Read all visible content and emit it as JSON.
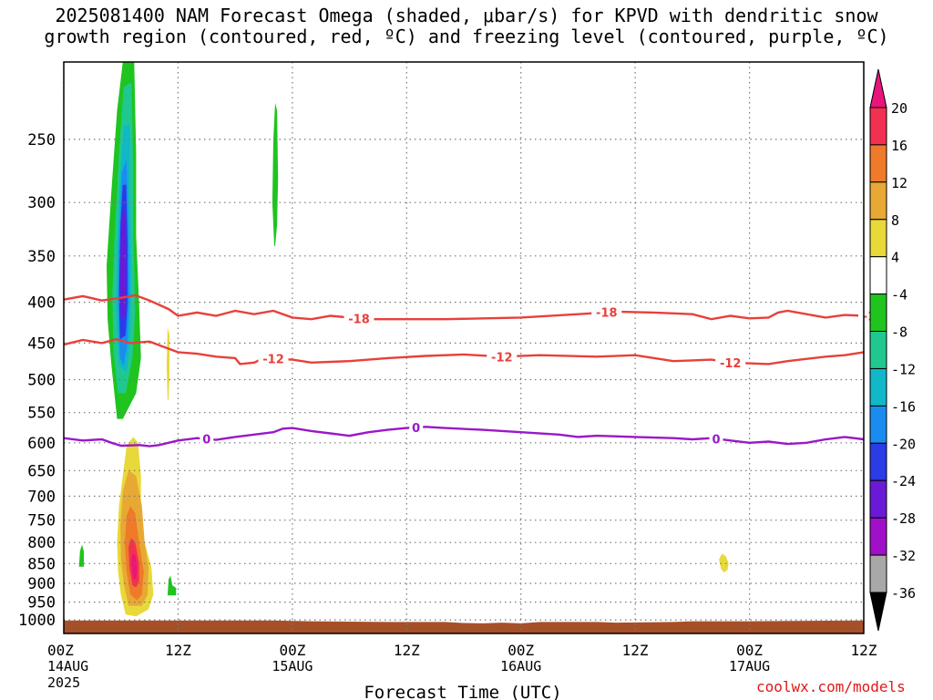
{
  "title_line1": "2025081400 NAM Forecast Omega (shaded, μbar/s) for KPVD with dendritic snow",
  "title_line2": "growth region (contoured, red, ºC) and freezing level (contoured, purple, ºC)",
  "credit": "coolwx.com/models",
  "chart_data": {
    "type": "contour",
    "xlabel": "Forecast Time (UTC)",
    "ylabel": "",
    "x_range_hours": [
      0,
      84
    ],
    "x_ticks": [
      {
        "hour": 0,
        "label": "00Z",
        "sub1": "14AUG",
        "sub2": "2025"
      },
      {
        "hour": 12,
        "label": "12Z",
        "sub1": "",
        "sub2": ""
      },
      {
        "hour": 24,
        "label": "00Z",
        "sub1": "15AUG",
        "sub2": ""
      },
      {
        "hour": 36,
        "label": "12Z",
        "sub1": "",
        "sub2": ""
      },
      {
        "hour": 48,
        "label": "00Z",
        "sub1": "16AUG",
        "sub2": ""
      },
      {
        "hour": 60,
        "label": "12Z",
        "sub1": "",
        "sub2": ""
      },
      {
        "hour": 72,
        "label": "00Z",
        "sub1": "17AUG",
        "sub2": ""
      },
      {
        "hour": 84,
        "label": "12Z",
        "sub1": "",
        "sub2": ""
      }
    ],
    "y_scale": "log",
    "y_range_hpa": [
      1040,
      200
    ],
    "y_ticks": [
      250,
      300,
      350,
      400,
      450,
      500,
      550,
      600,
      650,
      700,
      750,
      800,
      850,
      900,
      950,
      1000
    ],
    "grid": true,
    "colorbar": {
      "labels": [
        20,
        16,
        12,
        8,
        4,
        -4,
        -8,
        -12,
        -16,
        -20,
        -24,
        -28,
        -32,
        -36
      ],
      "colors": [
        "#f23050",
        "#ee7a2a",
        "#e8a834",
        "#e8d83a",
        "#ffffff",
        "#1fc41f",
        "#20c890",
        "#10b8c8",
        "#1a8cf0",
        "#2a3ce6",
        "#6a1ad6",
        "#a010c8",
        "#a8a8a8"
      ],
      "top_arrow_color": "#e8157a",
      "bottom_arrow_color": "#000000"
    },
    "contours": [
      {
        "name": "-18",
        "color": "#e8403a",
        "label_hours": [
          31,
          57,
          85
        ],
        "points": [
          [
            0,
            397
          ],
          [
            2,
            393
          ],
          [
            4,
            398
          ],
          [
            6,
            395
          ],
          [
            7.5,
            392
          ],
          [
            9,
            398
          ],
          [
            11,
            408
          ],
          [
            12,
            416
          ],
          [
            14,
            412
          ],
          [
            16,
            416
          ],
          [
            18,
            410
          ],
          [
            20,
            414
          ],
          [
            22,
            410
          ],
          [
            24,
            418
          ],
          [
            26,
            420
          ],
          [
            28,
            416
          ],
          [
            30,
            418
          ],
          [
            32,
            420
          ],
          [
            40,
            420
          ],
          [
            48,
            418
          ],
          [
            54,
            414
          ],
          [
            58,
            411
          ],
          [
            62,
            412
          ],
          [
            66,
            414
          ],
          [
            68,
            420
          ],
          [
            70,
            416
          ],
          [
            72,
            419
          ],
          [
            74,
            418
          ],
          [
            75,
            412
          ],
          [
            76,
            410
          ],
          [
            78,
            414
          ],
          [
            80,
            418
          ],
          [
            82,
            415
          ],
          [
            84,
            416
          ]
        ]
      },
      {
        "name": "-12",
        "color": "#e8403a",
        "label_hours": [
          22,
          46,
          70
        ],
        "points": [
          [
            0,
            452
          ],
          [
            2,
            446
          ],
          [
            4,
            450
          ],
          [
            5.5,
            445
          ],
          [
            7,
            450
          ],
          [
            9,
            448
          ],
          [
            10.5,
            455
          ],
          [
            12,
            462
          ],
          [
            14,
            464
          ],
          [
            16,
            468
          ],
          [
            18,
            470
          ],
          [
            18.5,
            478
          ],
          [
            20,
            476
          ],
          [
            21,
            470
          ],
          [
            24,
            472
          ],
          [
            26,
            476
          ],
          [
            30,
            474
          ],
          [
            34,
            470
          ],
          [
            38,
            467
          ],
          [
            42,
            465
          ],
          [
            46,
            468
          ],
          [
            50,
            466
          ],
          [
            56,
            468
          ],
          [
            60,
            466
          ],
          [
            64,
            474
          ],
          [
            68,
            472
          ],
          [
            70,
            476
          ],
          [
            74,
            478
          ],
          [
            76,
            474
          ],
          [
            80,
            468
          ],
          [
            82,
            466
          ],
          [
            84,
            462
          ]
        ]
      },
      {
        "name": "0",
        "color": "#9a18c8",
        "label_hours": [
          15,
          37,
          68.5
        ],
        "points": [
          [
            0,
            592
          ],
          [
            2,
            596
          ],
          [
            4,
            594
          ],
          [
            5,
            600
          ],
          [
            6,
            605
          ],
          [
            8,
            604
          ],
          [
            9,
            606
          ],
          [
            10,
            604
          ],
          [
            11,
            600
          ],
          [
            12,
            596
          ],
          [
            14,
            592
          ],
          [
            16,
            595
          ],
          [
            18,
            590
          ],
          [
            20,
            586
          ],
          [
            22,
            582
          ],
          [
            23,
            576
          ],
          [
            24,
            575
          ],
          [
            26,
            580
          ],
          [
            28,
            584
          ],
          [
            30,
            588
          ],
          [
            32,
            582
          ],
          [
            34,
            578
          ],
          [
            36,
            575
          ],
          [
            38,
            573
          ],
          [
            40,
            575
          ],
          [
            44,
            578
          ],
          [
            48,
            582
          ],
          [
            52,
            586
          ],
          [
            54,
            590
          ],
          [
            56,
            588
          ],
          [
            60,
            590
          ],
          [
            64,
            592
          ],
          [
            66,
            594
          ],
          [
            68,
            592
          ],
          [
            70,
            596
          ],
          [
            72,
            600
          ],
          [
            74,
            598
          ],
          [
            76,
            602
          ],
          [
            78,
            600
          ],
          [
            80,
            594
          ],
          [
            82,
            590
          ],
          [
            84,
            594
          ]
        ]
      }
    ],
    "omega_regions": [
      {
        "value": -8,
        "color": "#1fc41f",
        "outline": [
          [
            5.6,
            560
          ],
          [
            5.0,
            480
          ],
          [
            4.6,
            420
          ],
          [
            4.5,
            360
          ],
          [
            5.0,
            290
          ],
          [
            5.6,
            230
          ],
          [
            6.2,
            200
          ],
          [
            7.4,
            200
          ],
          [
            7.6,
            260
          ],
          [
            7.6,
            330
          ],
          [
            7.9,
            400
          ],
          [
            8.1,
            470
          ],
          [
            7.6,
            520
          ],
          [
            6.2,
            560
          ]
        ]
      },
      {
        "value": -12,
        "color": "#20c890",
        "outline": [
          [
            5.7,
            520
          ],
          [
            5.2,
            460
          ],
          [
            5.1,
            390
          ],
          [
            5.4,
            320
          ],
          [
            5.8,
            260
          ],
          [
            6.3,
            215
          ],
          [
            7.1,
            212
          ],
          [
            7.3,
            270
          ],
          [
            7.3,
            330
          ],
          [
            7.5,
            410
          ],
          [
            7.2,
            470
          ],
          [
            6.5,
            520
          ]
        ]
      },
      {
        "value": -16,
        "color": "#10b8c8",
        "outline": [
          [
            5.8,
            480
          ],
          [
            5.5,
            410
          ],
          [
            5.6,
            340
          ],
          [
            5.9,
            280
          ],
          [
            6.3,
            240
          ],
          [
            6.9,
            240
          ],
          [
            7.0,
            300
          ],
          [
            7.1,
            370
          ],
          [
            7.0,
            440
          ],
          [
            6.6,
            490
          ]
        ]
      },
      {
        "value": -20,
        "color": "#1a8cf0",
        "outline": [
          [
            5.9,
            470
          ],
          [
            5.7,
            400
          ],
          [
            5.8,
            330
          ],
          [
            6.1,
            275
          ],
          [
            6.6,
            265
          ],
          [
            6.8,
            320
          ],
          [
            6.9,
            390
          ],
          [
            6.7,
            450
          ],
          [
            6.3,
            480
          ]
        ]
      },
      {
        "value": -24,
        "color": "#2a3ce6",
        "outline": [
          [
            5.9,
            445
          ],
          [
            5.8,
            385
          ],
          [
            5.95,
            320
          ],
          [
            6.2,
            285
          ],
          [
            6.55,
            285
          ],
          [
            6.7,
            340
          ],
          [
            6.7,
            400
          ],
          [
            6.5,
            440
          ]
        ]
      },
      {
        "value": -28,
        "color": "#6a1ad6",
        "outline": [
          [
            6.0,
            420
          ],
          [
            5.9,
            370
          ],
          [
            6.05,
            320
          ],
          [
            6.3,
            300
          ],
          [
            6.5,
            320
          ],
          [
            6.55,
            370
          ],
          [
            6.45,
            415
          ]
        ]
      },
      {
        "value": -8,
        "color": "#1fc41f",
        "outline": [
          [
            22.1,
            340
          ],
          [
            21.9,
            300
          ],
          [
            22.0,
            250
          ],
          [
            22.2,
            225
          ],
          [
            22.4,
            230
          ],
          [
            22.5,
            280
          ],
          [
            22.4,
            320
          ],
          [
            22.2,
            340
          ]
        ]
      },
      {
        "value": -8,
        "color": "#1fc41f",
        "outline": [
          [
            1.6,
            858
          ],
          [
            1.7,
            820
          ],
          [
            1.9,
            805
          ],
          [
            2.1,
            820
          ],
          [
            2.1,
            858
          ]
        ]
      },
      {
        "value": -8,
        "color": "#1fc41f",
        "outline": [
          [
            10.9,
            932
          ],
          [
            11.0,
            890
          ],
          [
            11.2,
            880
          ],
          [
            11.4,
            905
          ],
          [
            11.8,
            912
          ],
          [
            11.8,
            932
          ]
        ]
      },
      {
        "value": 4,
        "color": "#e8d83a",
        "outline": [
          [
            10.9,
            530
          ],
          [
            10.8,
            480
          ],
          [
            10.9,
            430
          ],
          [
            11.1,
            440
          ],
          [
            11.1,
            490
          ],
          [
            11.0,
            530
          ]
        ]
      },
      {
        "value": 4,
        "color": "#e8d83a",
        "outline": [
          [
            6.5,
            985
          ],
          [
            6.0,
            930
          ],
          [
            5.7,
            870
          ],
          [
            5.6,
            800
          ],
          [
            5.8,
            720
          ],
          [
            6.2,
            660
          ],
          [
            6.6,
            605
          ],
          [
            7.3,
            590
          ],
          [
            7.8,
            600
          ],
          [
            8.1,
            660
          ],
          [
            8.1,
            720
          ],
          [
            8.5,
            800
          ],
          [
            9.2,
            860
          ],
          [
            9.4,
            930
          ],
          [
            8.9,
            970
          ],
          [
            7.6,
            990
          ]
        ]
      },
      {
        "value": 4,
        "color": "#e8d83a",
        "outline": [
          [
            68.8,
            840
          ],
          [
            69.1,
            826
          ],
          [
            69.5,
            832
          ],
          [
            69.8,
            848
          ],
          [
            69.7,
            866
          ],
          [
            69.3,
            872
          ],
          [
            69.0,
            862
          ]
        ]
      },
      {
        "value": 8,
        "color": "#e8a834",
        "outline": [
          [
            6.8,
            960
          ],
          [
            6.3,
            900
          ],
          [
            6.0,
            840
          ],
          [
            5.95,
            760
          ],
          [
            6.2,
            690
          ],
          [
            6.8,
            650
          ],
          [
            7.6,
            660
          ],
          [
            8.2,
            720
          ],
          [
            8.5,
            800
          ],
          [
            8.9,
            860
          ],
          [
            8.8,
            930
          ],
          [
            8.2,
            960
          ]
        ]
      },
      {
        "value": 12,
        "color": "#ee7a2a",
        "outline": [
          [
            7.0,
            930
          ],
          [
            6.6,
            870
          ],
          [
            6.4,
            800
          ],
          [
            6.6,
            740
          ],
          [
            7.0,
            720
          ],
          [
            7.5,
            735
          ],
          [
            7.9,
            800
          ],
          [
            8.4,
            870
          ],
          [
            8.2,
            930
          ],
          [
            7.7,
            945
          ]
        ]
      },
      {
        "value": 16,
        "color": "#f23050",
        "outline": [
          [
            7.2,
            905
          ],
          [
            6.9,
            860
          ],
          [
            6.8,
            810
          ],
          [
            7.1,
            790
          ],
          [
            7.5,
            800
          ],
          [
            7.9,
            850
          ],
          [
            7.9,
            895
          ],
          [
            7.6,
            910
          ]
        ]
      },
      {
        "value": 20,
        "color": "#e8157a",
        "outline": [
          [
            7.3,
            888
          ],
          [
            7.1,
            850
          ],
          [
            7.2,
            825
          ],
          [
            7.5,
            830
          ],
          [
            7.7,
            862
          ],
          [
            7.6,
            890
          ]
        ]
      }
    ],
    "terrain": {
      "color": "#a6502a",
      "top": [
        [
          0,
          1002
        ],
        [
          12,
          1002
        ],
        [
          22,
          1002
        ],
        [
          26,
          1004
        ],
        [
          34,
          1006
        ],
        [
          40,
          1006
        ],
        [
          42,
          1009
        ],
        [
          44,
          1010
        ],
        [
          46,
          1008
        ],
        [
          48,
          1010
        ],
        [
          50,
          1006
        ],
        [
          56,
          1006
        ],
        [
          58,
          1008
        ],
        [
          64,
          1006
        ],
        [
          66,
          1004
        ],
        [
          72,
          1004
        ],
        [
          76,
          1003
        ],
        [
          84,
          1002
        ]
      ]
    }
  }
}
